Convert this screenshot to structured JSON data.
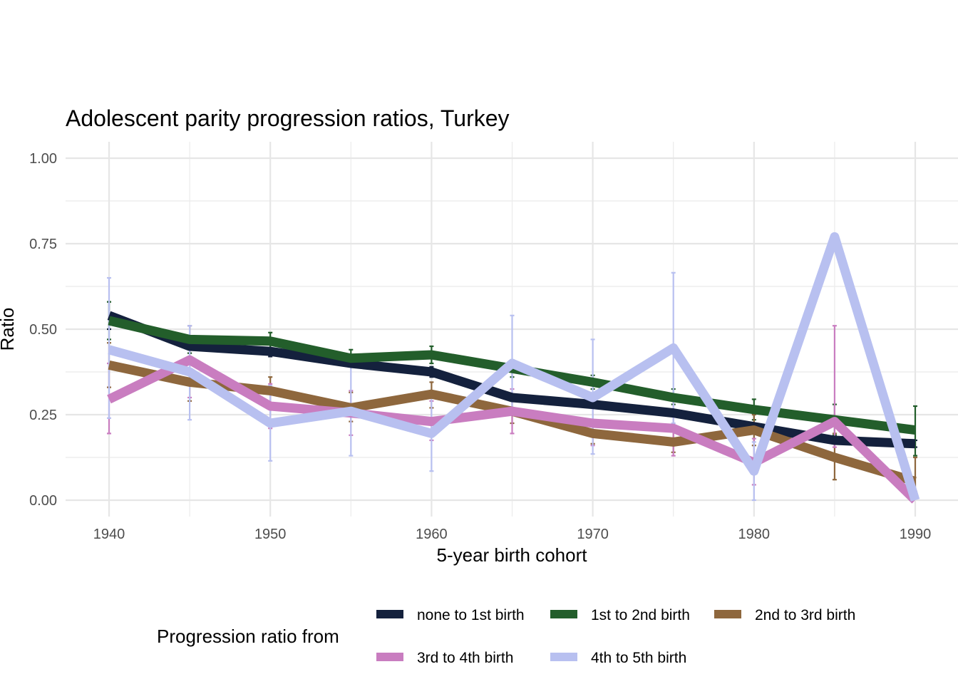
{
  "chart_data": {
    "type": "line",
    "title": "Adolescent parity progression ratios,  Turkey",
    "xlabel": "5-year birth cohort",
    "ylabel": "Ratio",
    "xlim": [
      1937.5,
      1992.5
    ],
    "ylim": [
      0,
      1
    ],
    "x_ticks": [
      1940,
      1950,
      1960,
      1970,
      1980,
      1990
    ],
    "y_ticks": [
      0,
      0.25,
      0.5,
      0.75,
      1.0
    ],
    "y_tick_labels": [
      "0.00",
      "0.25",
      "0.50",
      "0.75",
      "1.00"
    ],
    "grid": true,
    "legend_title": "Progression ratio from",
    "legend_position": "bottom",
    "x": [
      1940,
      1945,
      1950,
      1955,
      1960,
      1965,
      1970,
      1975,
      1980,
      1985,
      1990
    ],
    "series": [
      {
        "name": "none to 1st birth",
        "color": "#14213d",
        "values": [
          0.54,
          0.45,
          0.435,
          0.4,
          0.375,
          0.3,
          0.28,
          0.255,
          0.215,
          0.175,
          0.165
        ],
        "lower": [
          0.5,
          0.43,
          0.42,
          0.39,
          0.36,
          0.29,
          0.27,
          0.245,
          0.205,
          0.165,
          0.155
        ],
        "upper": [
          0.58,
          0.47,
          0.455,
          0.41,
          0.39,
          0.31,
          0.29,
          0.265,
          0.225,
          0.185,
          0.175
        ]
      },
      {
        "name": "1st to 2nd birth",
        "color": "#235e2b",
        "values": [
          0.525,
          0.47,
          0.465,
          0.415,
          0.425,
          0.385,
          0.345,
          0.3,
          0.265,
          0.235,
          0.205
        ],
        "lower": [
          0.47,
          0.43,
          0.44,
          0.39,
          0.4,
          0.36,
          0.325,
          0.28,
          0.235,
          0.19,
          0.13
        ],
        "upper": [
          0.58,
          0.51,
          0.49,
          0.44,
          0.45,
          0.41,
          0.365,
          0.325,
          0.295,
          0.28,
          0.275
        ]
      },
      {
        "name": "2nd to 3rd birth",
        "color": "#8e673d",
        "values": [
          0.395,
          0.345,
          0.32,
          0.27,
          0.31,
          0.26,
          0.195,
          0.17,
          0.205,
          0.125,
          0.055
        ],
        "lower": [
          0.33,
          0.29,
          0.28,
          0.23,
          0.27,
          0.225,
          0.165,
          0.14,
          0.16,
          0.06,
          0.025
        ],
        "upper": [
          0.46,
          0.4,
          0.36,
          0.315,
          0.345,
          0.295,
          0.225,
          0.2,
          0.25,
          0.195,
          0.125
        ]
      },
      {
        "name": "3rd to 4th birth",
        "color": "#c97dc0",
        "values": [
          0.295,
          0.41,
          0.275,
          0.255,
          0.23,
          0.26,
          0.225,
          0.21,
          0.11,
          0.23,
          0.0
        ],
        "lower": [
          0.195,
          0.3,
          0.21,
          0.19,
          0.175,
          0.195,
          0.16,
          0.13,
          0.045,
          0.155,
          0.0
        ],
        "upper": [
          0.4,
          0.51,
          0.34,
          0.32,
          0.29,
          0.325,
          0.29,
          0.29,
          0.18,
          0.51,
          0.0
        ]
      },
      {
        "name": "4th to 5th birth",
        "color": "#b8c0f0",
        "values": [
          0.44,
          0.375,
          0.225,
          0.26,
          0.195,
          0.4,
          0.3,
          0.445,
          0.085,
          0.77,
          0.0
        ],
        "lower": [
          0.24,
          0.235,
          0.115,
          0.13,
          0.085,
          0.26,
          0.135,
          0.225,
          0.0,
          0.34,
          0.0
        ],
        "upper": [
          0.65,
          0.51,
          0.335,
          0.39,
          0.31,
          0.54,
          0.47,
          0.665,
          0.17,
          0.34,
          0.0
        ]
      }
    ]
  }
}
